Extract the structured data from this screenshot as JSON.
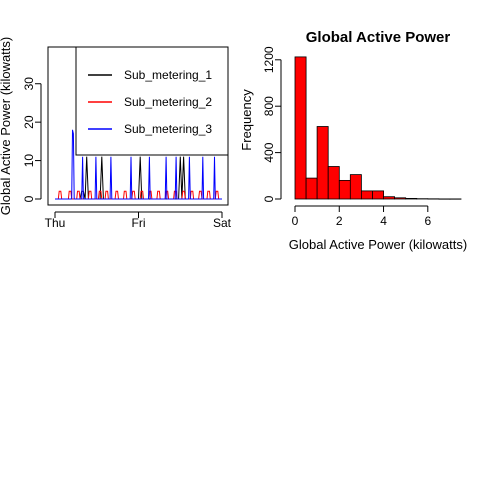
{
  "chart_data": [
    {
      "type": "line",
      "title": "",
      "xlabel": "",
      "ylabel": "Global Active Power (kilowatts)",
      "x_ticks": [
        "Thu",
        "Fri",
        "Sat"
      ],
      "x_range": [
        "Thu",
        "Sat"
      ],
      "ylim": [
        0,
        38
      ],
      "y_ticks": [
        0,
        10,
        20,
        30
      ],
      "grid": false,
      "legend": {
        "position": "top-right",
        "box": true
      },
      "series": [
        {
          "name": "Sub_metering_1",
          "color": "#000000",
          "notes_values": "mostly 0 with occasional spikes",
          "points": [
            [
              0.0,
              0
            ],
            [
              0.15,
              0
            ],
            [
              0.16,
              2
            ],
            [
              0.17,
              2
            ],
            [
              0.18,
              0
            ],
            [
              0.19,
              11
            ],
            [
              0.2,
              0
            ],
            [
              0.27,
              0
            ],
            [
              0.28,
              11
            ],
            [
              0.29,
              0
            ],
            [
              0.5,
              0
            ],
            [
              0.51,
              11
            ],
            [
              0.52,
              0
            ],
            [
              0.74,
              0
            ],
            [
              0.75,
              11
            ],
            [
              0.76,
              0
            ],
            [
              0.77,
              11
            ],
            [
              0.78,
              0
            ],
            [
              1.0,
              0
            ]
          ]
        },
        {
          "name": "Sub_metering_2",
          "color": "#ff0000",
          "points": [
            [
              0.0,
              0
            ],
            [
              0.02,
              0
            ],
            [
              0.025,
              2
            ],
            [
              0.035,
              2
            ],
            [
              0.04,
              0
            ],
            [
              0.08,
              0
            ],
            [
              0.085,
              2
            ],
            [
              0.095,
              2
            ],
            [
              0.1,
              0
            ],
            [
              0.13,
              0
            ],
            [
              0.135,
              2
            ],
            [
              0.145,
              2
            ],
            [
              0.15,
              0
            ],
            [
              0.2,
              0
            ],
            [
              0.205,
              2
            ],
            [
              0.215,
              2
            ],
            [
              0.22,
              0
            ],
            [
              0.26,
              0
            ],
            [
              0.265,
              2
            ],
            [
              0.275,
              2
            ],
            [
              0.28,
              0
            ],
            [
              0.3,
              0
            ],
            [
              0.305,
              2
            ],
            [
              0.315,
              2
            ],
            [
              0.32,
              0
            ],
            [
              0.36,
              0
            ],
            [
              0.365,
              2
            ],
            [
              0.375,
              2
            ],
            [
              0.38,
              0
            ],
            [
              0.41,
              0
            ],
            [
              0.415,
              2
            ],
            [
              0.425,
              2
            ],
            [
              0.43,
              0
            ],
            [
              0.46,
              0
            ],
            [
              0.465,
              2
            ],
            [
              0.475,
              2
            ],
            [
              0.48,
              0
            ],
            [
              0.51,
              0
            ],
            [
              0.515,
              2
            ],
            [
              0.525,
              2
            ],
            [
              0.53,
              0
            ],
            [
              0.56,
              0
            ],
            [
              0.565,
              2
            ],
            [
              0.575,
              2
            ],
            [
              0.58,
              0
            ],
            [
              0.61,
              0
            ],
            [
              0.615,
              2
            ],
            [
              0.625,
              2
            ],
            [
              0.63,
              0
            ],
            [
              0.66,
              0
            ],
            [
              0.665,
              2
            ],
            [
              0.675,
              2
            ],
            [
              0.68,
              0
            ],
            [
              0.71,
              0
            ],
            [
              0.715,
              2
            ],
            [
              0.725,
              2
            ],
            [
              0.73,
              0
            ],
            [
              0.76,
              0
            ],
            [
              0.765,
              2
            ],
            [
              0.775,
              2
            ],
            [
              0.78,
              0
            ],
            [
              0.81,
              0
            ],
            [
              0.815,
              2
            ],
            [
              0.825,
              2
            ],
            [
              0.83,
              0
            ],
            [
              0.86,
              0
            ],
            [
              0.865,
              2
            ],
            [
              0.875,
              2
            ],
            [
              0.88,
              0
            ],
            [
              0.91,
              0
            ],
            [
              0.915,
              2
            ],
            [
              0.925,
              2
            ],
            [
              0.93,
              0
            ],
            [
              0.96,
              0
            ],
            [
              0.965,
              2
            ],
            [
              0.975,
              2
            ],
            [
              0.98,
              0
            ],
            [
              1.0,
              0
            ]
          ]
        },
        {
          "name": "Sub_metering_3",
          "color": "#0000ff",
          "points": [
            [
              0.0,
              0
            ],
            [
              0.1,
              0
            ],
            [
              0.105,
              18
            ],
            [
              0.11,
              17
            ],
            [
              0.115,
              0
            ],
            [
              0.16,
              0
            ],
            [
              0.165,
              11
            ],
            [
              0.17,
              0
            ],
            [
              0.24,
              0
            ],
            [
              0.245,
              11
            ],
            [
              0.25,
              0
            ],
            [
              0.33,
              0
            ],
            [
              0.335,
              11
            ],
            [
              0.34,
              0
            ],
            [
              0.45,
              0
            ],
            [
              0.455,
              11
            ],
            [
              0.46,
              0
            ],
            [
              0.56,
              0
            ],
            [
              0.565,
              11
            ],
            [
              0.57,
              0
            ],
            [
              0.66,
              0
            ],
            [
              0.665,
              11
            ],
            [
              0.67,
              0
            ],
            [
              0.72,
              0
            ],
            [
              0.725,
              11
            ],
            [
              0.73,
              0
            ],
            [
              0.8,
              0
            ],
            [
              0.805,
              11
            ],
            [
              0.81,
              0
            ],
            [
              0.88,
              0
            ],
            [
              0.885,
              11
            ],
            [
              0.89,
              0
            ],
            [
              0.95,
              0
            ],
            [
              0.955,
              11
            ],
            [
              0.96,
              0
            ],
            [
              1.0,
              0
            ]
          ]
        }
      ]
    },
    {
      "type": "bar",
      "title": "Global Active Power",
      "xlabel": "Global Active Power (kilowatts)",
      "ylabel": "Frequency",
      "bar_color": "#ff0000",
      "bin_width": 0.5,
      "bin_start": 0,
      "values": [
        1225,
        180,
        625,
        280,
        160,
        210,
        70,
        70,
        20,
        10,
        5,
        3,
        2,
        1,
        1
      ],
      "xlim": [
        0,
        7.5
      ],
      "x_ticks": [
        0,
        2,
        4,
        6
      ],
      "ylim": [
        0,
        1250
      ],
      "y_ticks": [
        0,
        400,
        800,
        1200
      ],
      "grid": false
    }
  ]
}
